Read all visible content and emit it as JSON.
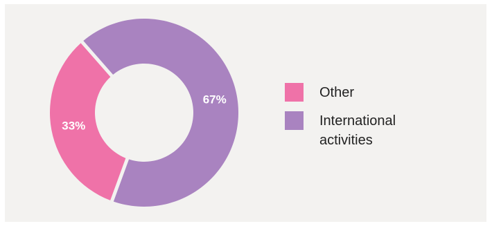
{
  "chart_data": {
    "type": "pie",
    "donut": true,
    "categories": [
      "Other",
      "International activities"
    ],
    "values": [
      33,
      67
    ],
    "labels": [
      "33%",
      "67%"
    ],
    "colors": [
      "#ef72a8",
      "#a983c0"
    ],
    "legend": {
      "position": "right",
      "items": [
        {
          "label": "Other",
          "color": "#ef72a8"
        },
        {
          "label": "International activities",
          "color": "#a983c0"
        }
      ]
    }
  }
}
